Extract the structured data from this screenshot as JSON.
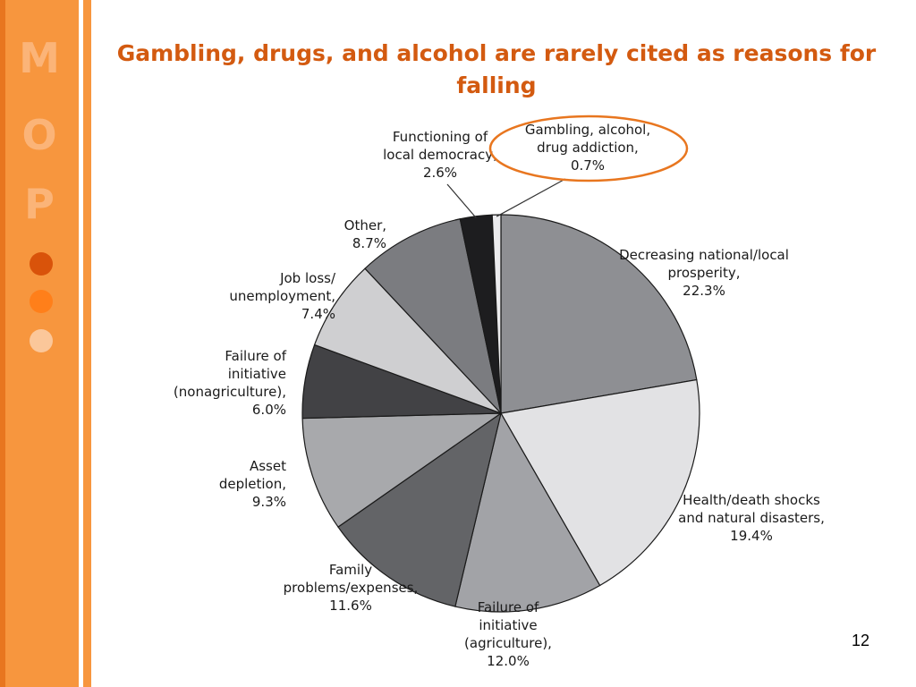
{
  "sidebar": {
    "letters": [
      "M",
      "O",
      "P"
    ],
    "dot_colors": [
      "#d9530a",
      "#ff7f1a",
      "#fbc79a"
    ]
  },
  "title": "Gambling, drugs, and alcohol are rarely cited as reasons for falling",
  "title_color": "#d35a10",
  "page_number": "12",
  "highlight_color": "#e8761f",
  "chart_data": {
    "type": "pie",
    "slices": [
      {
        "label": [
          "Decreasing national/local",
          "prosperity,",
          "22.3%"
        ],
        "value": 22.3,
        "color": "#8e8f93"
      },
      {
        "label": [
          "Health/death shocks",
          "and natural disasters,",
          "19.4%"
        ],
        "value": 19.4,
        "color": "#e2e2e4"
      },
      {
        "label": [
          "Failure of",
          "initiative",
          "(agriculture),",
          "12.0%"
        ],
        "value": 12.0,
        "color": "#a2a3a7"
      },
      {
        "label": [
          "Family",
          "problems/expenses,",
          "11.6%"
        ],
        "value": 11.6,
        "color": "#636467"
      },
      {
        "label": [
          "Asset",
          "depletion,",
          "9.3%"
        ],
        "value": 9.3,
        "color": "#a8a9ac"
      },
      {
        "label": [
          "Failure of",
          "initiative",
          "(nonagriculture),",
          "6.0%"
        ],
        "value": 6.0,
        "color": "#424245"
      },
      {
        "label": [
          "Job loss/",
          "unemployment,",
          "7.4%"
        ],
        "value": 7.4,
        "color": "#cfcfd1"
      },
      {
        "label": [
          "Other,",
          "8.7%"
        ],
        "value": 8.7,
        "color": "#7b7c80"
      },
      {
        "label": [
          "Functioning of",
          "local democracy,",
          "2.6%"
        ],
        "value": 2.6,
        "color": "#1d1d1f"
      },
      {
        "label": [
          "Gambling, alcohol,",
          "drug addiction,",
          "0.7%"
        ],
        "value": 0.7,
        "color": "#ececee",
        "highlighted": true
      }
    ]
  }
}
